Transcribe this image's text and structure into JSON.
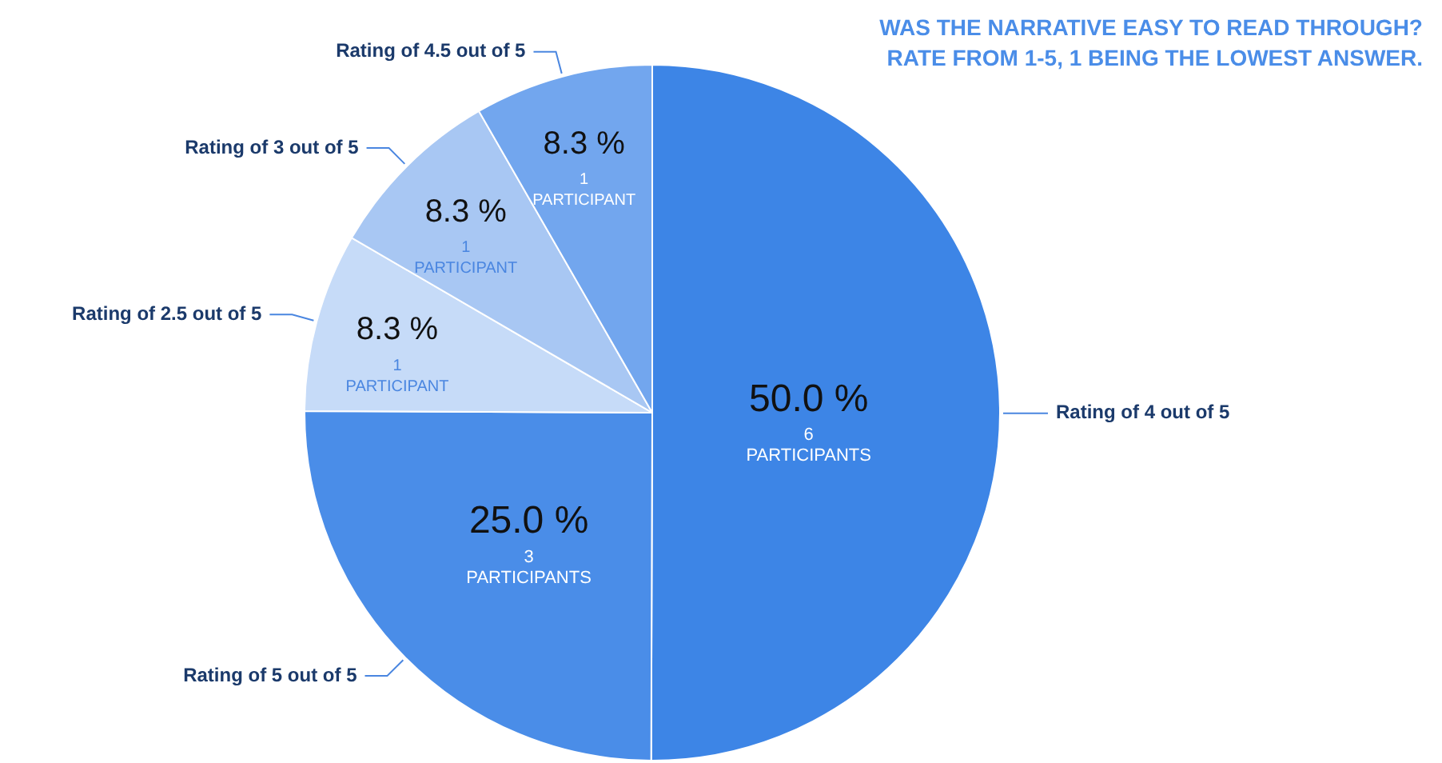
{
  "chart_data": {
    "type": "pie",
    "title": "WAS THE NARRATIVE EASY TO READ THROUGH?\nRATE FROM 1-5, 1 BEING THE LOWEST ANSWER.",
    "categories": [
      "Rating of 4 out of 5",
      "Rating of 5 out of 5",
      "Rating of 2.5 out of 5",
      "Rating of 3 out of 5",
      "Rating of 4.5 out of 5"
    ],
    "values": [
      50,
      25,
      8.3,
      8.3,
      8.3
    ],
    "value_labels": [
      "50.0 %",
      "25.0 %",
      "8.3 %",
      "8.3 %",
      "8.3 %"
    ],
    "colors": [
      "#3d85e6",
      "#4a8de8",
      "#c6dbf8",
      "#a8c7f3",
      "#72a6ee"
    ],
    "annotations": [
      "6 PARTICIPANTS",
      "3 PARTICIPANTS",
      "1 PARTICIPANT",
      "1 PARTICIPANT",
      "1 PARTICIPANT"
    ],
    "legend": false
  }
}
